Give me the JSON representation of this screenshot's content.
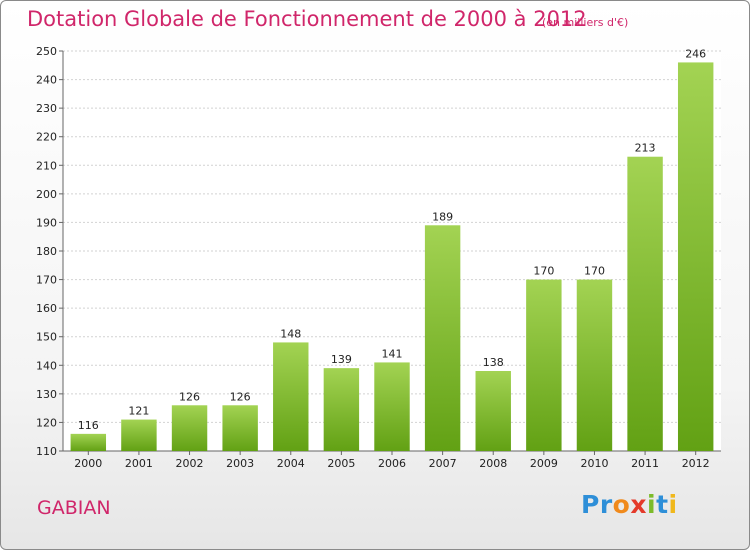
{
  "chart_data": {
    "type": "bar",
    "title": "Dotation Globale de Fonctionnement de 2000 à 2012",
    "subtitle": "(en milliers d'€)",
    "xlabel": "",
    "ylabel": "",
    "categories": [
      "2000",
      "2001",
      "2002",
      "2003",
      "2004",
      "2005",
      "2006",
      "2007",
      "2008",
      "2009",
      "2010",
      "2011",
      "2012"
    ],
    "values": [
      116,
      121,
      126,
      126,
      148,
      139,
      141,
      189,
      138,
      170,
      170,
      213,
      246
    ],
    "ylim": [
      110,
      250
    ],
    "yticks": [
      110,
      120,
      130,
      140,
      150,
      160,
      170,
      180,
      190,
      200,
      210,
      220,
      230,
      240,
      250
    ],
    "grid": true,
    "bar_color": "#7fbf2a",
    "bar_color_light": "#a3d353",
    "bar_color_dark": "#62a114",
    "title_color": "#d0266a"
  },
  "commune": "GABIAN",
  "logo": {
    "parts": [
      "Pr",
      "o",
      "x",
      "i",
      "t",
      "i"
    ]
  }
}
